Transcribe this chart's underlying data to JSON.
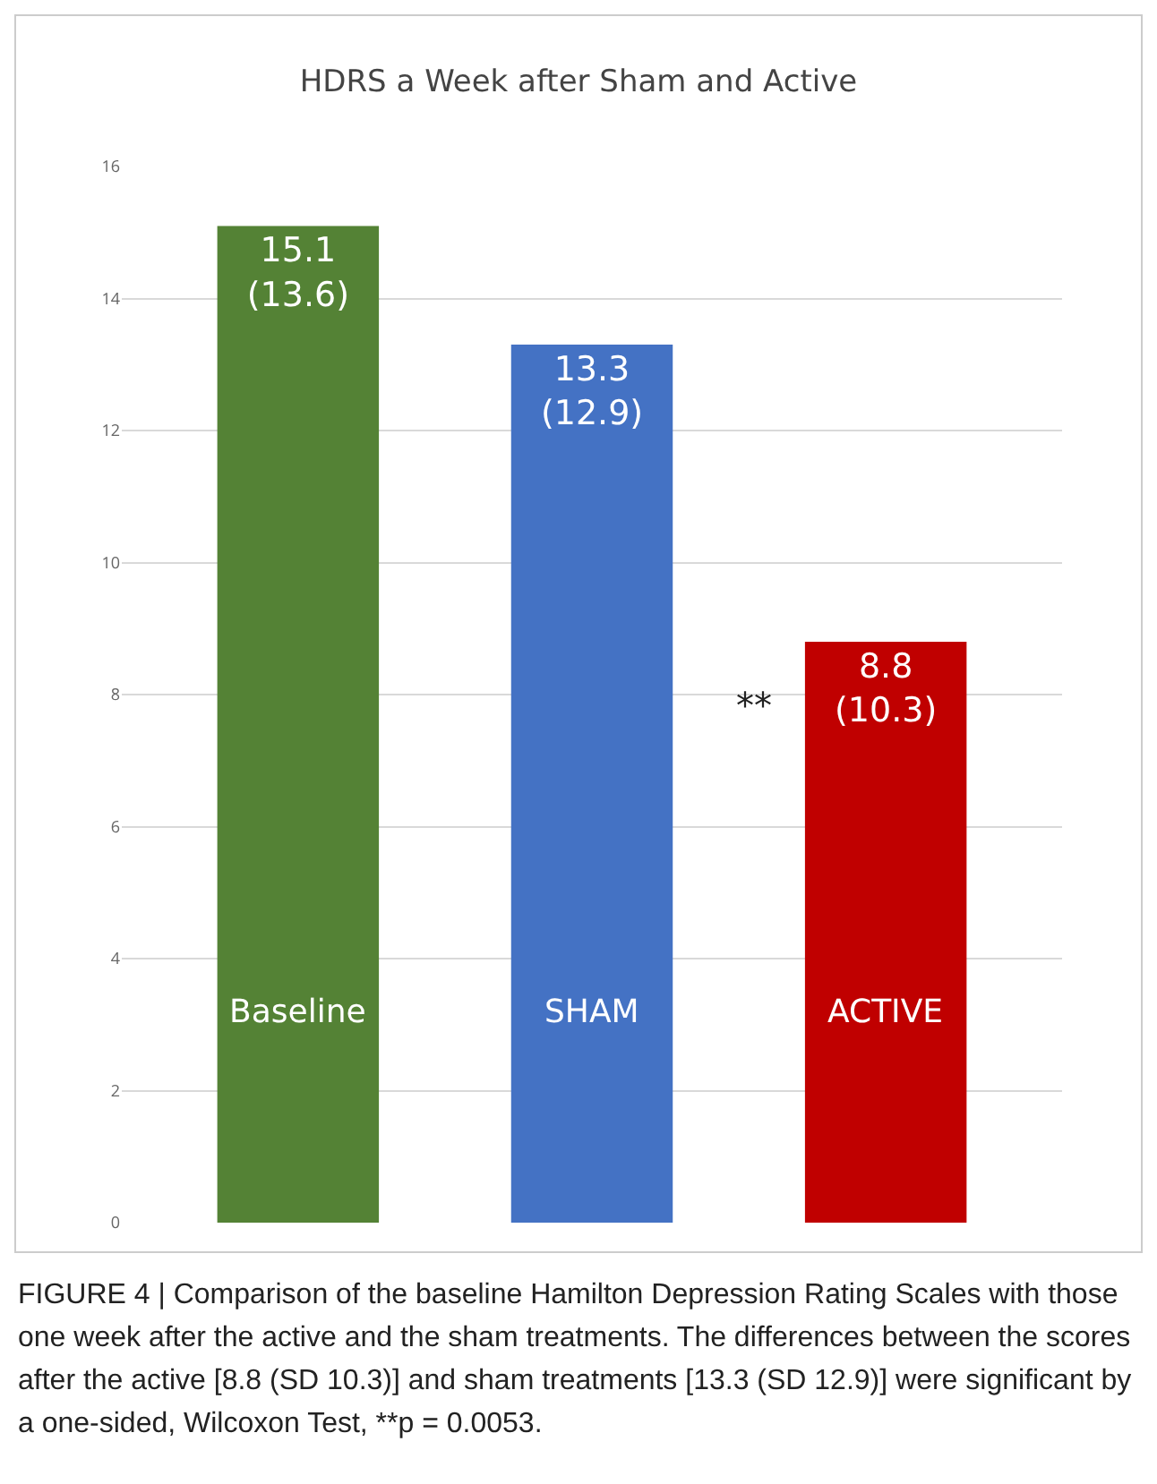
{
  "chart_data": {
    "type": "bar",
    "title": "HDRS a Week after Sham and Active",
    "categories": [
      "Baseline",
      "SHAM",
      "ACTIVE"
    ],
    "values": [
      15.1,
      13.3,
      8.8
    ],
    "colors": [
      "#548235",
      "#4472c4",
      "#c00000"
    ],
    "value_labels": [
      "15.1 (13.6)",
      "13.3 (12.9)",
      "8.8 (10.3)"
    ],
    "ylim": [
      0,
      16
    ],
    "yticks": [
      0,
      2,
      4,
      6,
      8,
      10,
      12,
      14,
      16
    ],
    "grid": "y",
    "annotations": [
      "**",
      "FIGURE 4 | Comparison of the baseline Hamilton Depression Rating Scales with those one week after the active and the sham treatments. The differences between the scores after the active [8.8 (SD 10.3)] and sham treatments [13.3 (SD 12.9)] were significant by a one-sided, Wilcoxon Test, **p = 0.0053."
    ]
  }
}
